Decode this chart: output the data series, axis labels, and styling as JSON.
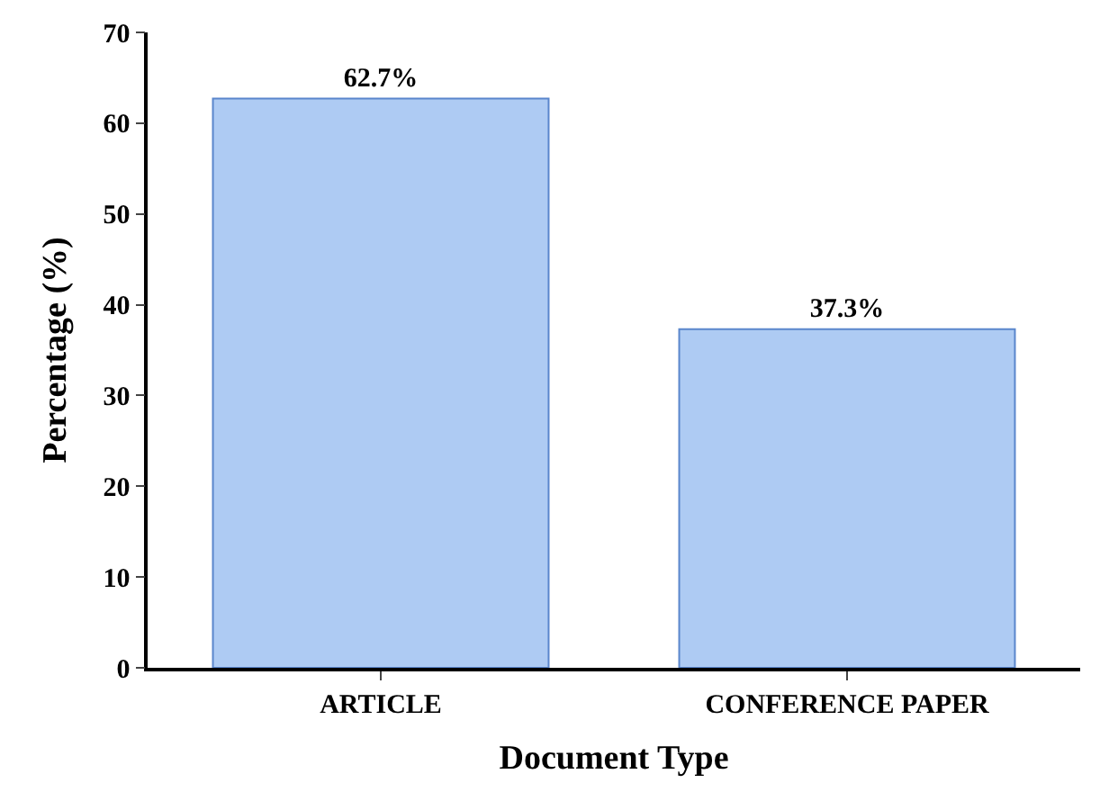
{
  "chart_data": {
    "type": "bar",
    "xlabel": "Document Type",
    "ylabel": "Percentage (%)",
    "categories": [
      "ARTICLE",
      "CONFERENCE PAPER"
    ],
    "values": [
      62.7,
      37.3
    ],
    "value_labels": [
      "62.7%",
      "37.3%"
    ],
    "color": "#aecbf3",
    "ylim": [
      0,
      70
    ],
    "yticks": [
      0,
      10,
      20,
      30,
      40,
      50,
      60,
      70
    ]
  }
}
